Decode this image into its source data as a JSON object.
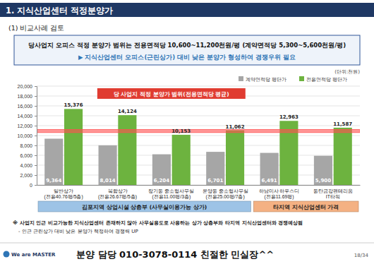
{
  "header": {
    "title": "1. 지식산업센터 적정분양가",
    "section": "(1) 비교사례 검토",
    "summary": "당사업지 오피스 적정 분양가 범위는 전용면적당 10,600~11,200천원/평 (계약면적당 5,300~5,600천원/평)",
    "note": "▶ 지식산업센터 오피스(근린상가) 대비 낮은 분양가 형성하여 경쟁우위 필요"
  },
  "chart_data": {
    "type": "bar",
    "y_label": "(단위:천원)",
    "categories": [
      "일반상가\n(전용40.76평/5층)",
      "복합상가\n(전용26.67평/5층)",
      "장기동 중소형사무실\n(전용11.00평/3층)",
      "운양동 중소형사무실\n(전용25.00평/7층)",
      "하남미사 하우스디\n(전용11.69평)",
      "동탄금강펜테리움\nIT타워"
    ],
    "series": [
      {
        "name": "계약면적당 평단가",
        "color": "#a6a6a6",
        "values": [
          9364,
          8014,
          6204,
          6701,
          6491,
          5900
        ],
        "value_labels": [
          "9,364",
          "8,014",
          "6,204",
          "6,701",
          "6,491",
          "5,900"
        ]
      },
      {
        "name": "전용면적당 평단가",
        "color": "#6db33f",
        "values": [
          15376,
          14124,
          10153,
          11062,
          12963,
          11587
        ],
        "value_labels": [
          "15,376",
          "14,124",
          "10,153",
          "11,062",
          "12,963",
          "11,587"
        ]
      }
    ],
    "ylim": [
      0,
      20000
    ],
    "yticks": [
      0,
      {
        "value": 2000,
        "label": "2,000"
      },
      {
        "value": 4000,
        "label": "4,000"
      },
      {
        "value": 6000,
        "label": "6,000"
      },
      {
        "value": 8000,
        "label": "8,000"
      },
      {
        "value": 10000,
        "label": "10,000"
      },
      {
        "value": 12000,
        "label": "12,000"
      },
      {
        "value": 14000,
        "label": "14,000"
      },
      {
        "value": 16000,
        "label": "16,000"
      },
      {
        "value": 18000,
        "label": "18,000"
      },
      {
        "value": 20000,
        "label": "20,000"
      }
    ],
    "grid": true,
    "legend": "top-right",
    "data_labels": true,
    "band": {
      "label": "당 사업지 적정 분양가 범위(전용면적당 평균)",
      "values": [
        10600,
        11200
      ],
      "color": "#ff5050"
    },
    "groups": [
      {
        "label": "김포지역 상업시설 상층부 (사무실이용가능 상가)",
        "size": 4,
        "color": "#9dc3e6"
      },
      {
        "label": "타지역 지식산업센터 가격",
        "size": 2,
        "color": "#f4b183"
      }
    ]
  },
  "notes": [
    "※ 사업지 인근 비교가능한 지식산업센터 존재하지 않아 사무실용도로 사용하는 상가 상층부와 타지역 지식산업센터와 경쟁예상됨",
    "- 인근 근린상가 대비 낮은 분양가 책정하여 경쟁력 UP"
  ],
  "footer": {
    "logo": "We are MASTER",
    "contact": "분양 담당 010-3078-0114 친절한 민실장^^",
    "page": "18/34"
  }
}
